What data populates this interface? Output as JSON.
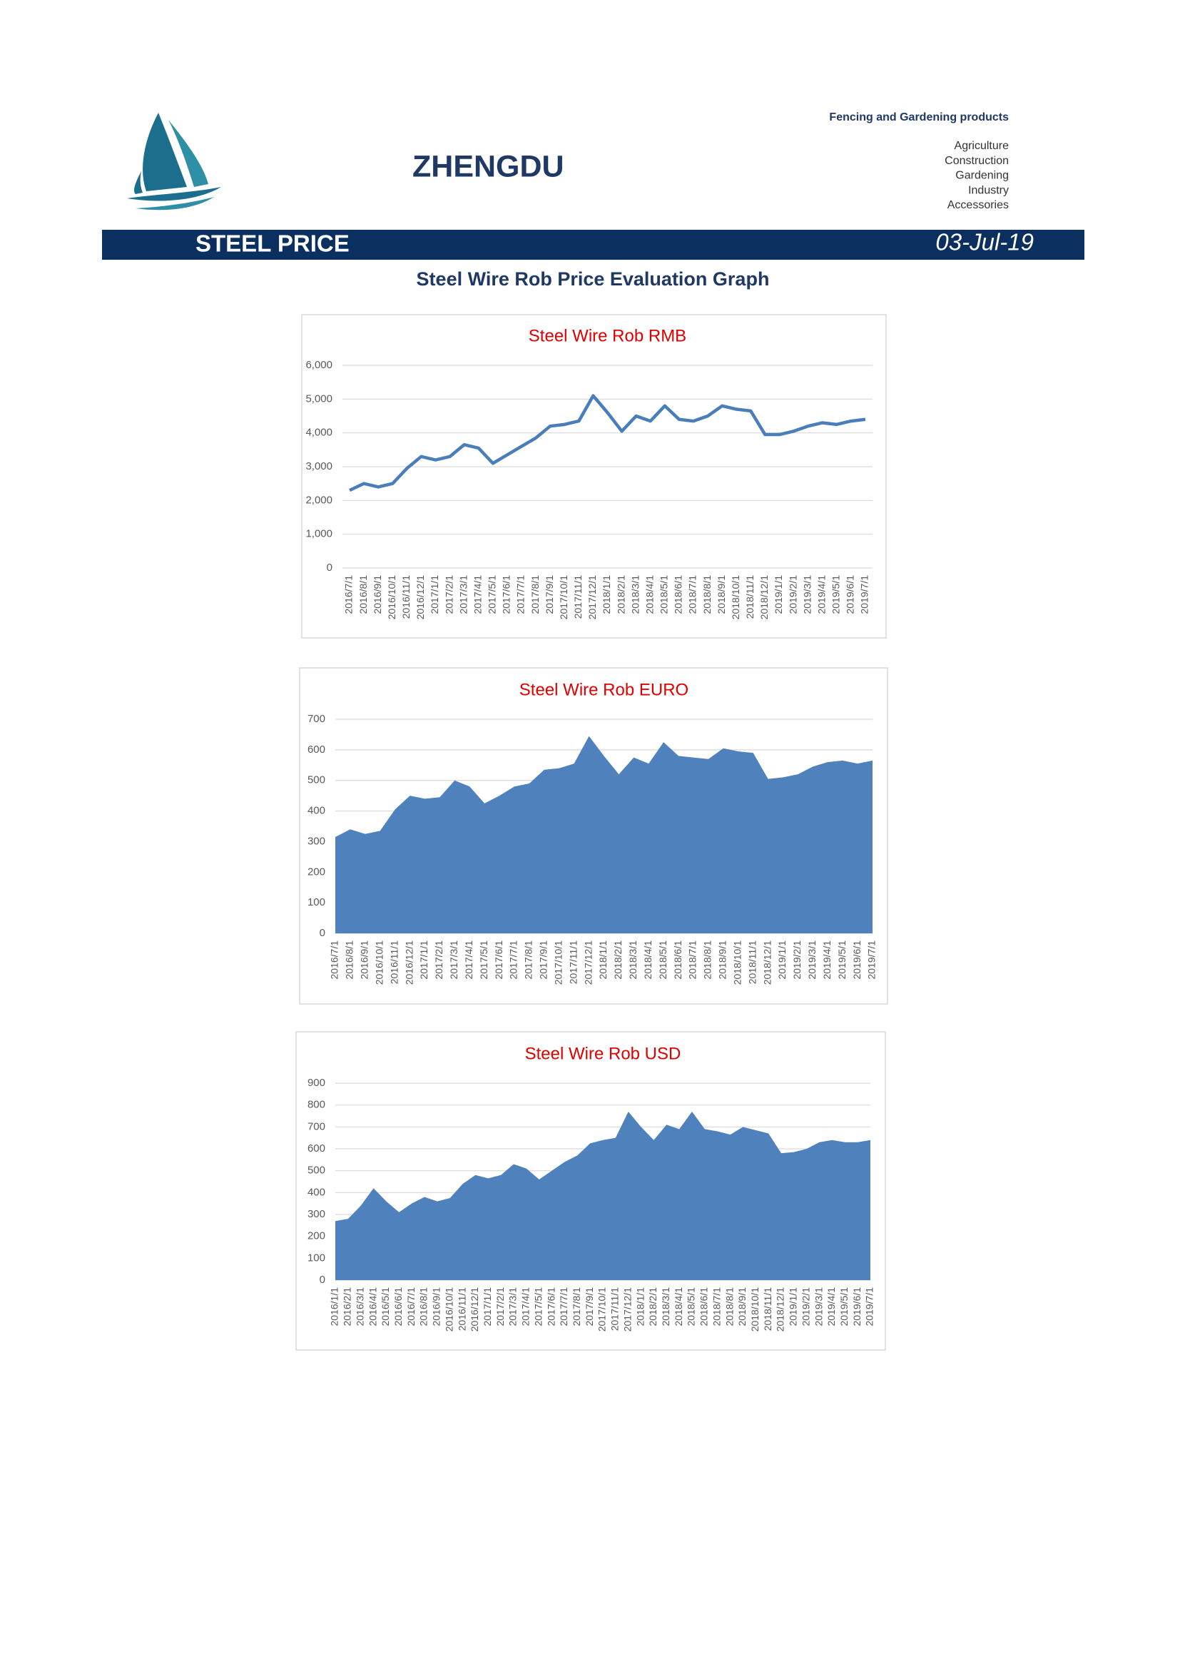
{
  "header": {
    "company": "ZHENGDU",
    "tagline": "Fencing and Gardening products",
    "products": [
      "Agriculture",
      "Construction",
      "Gardening",
      "Industry",
      "Accessories"
    ]
  },
  "banner": {
    "title": "STEEL PRICE",
    "date": "03-Jul-19"
  },
  "subtitle": "Steel Wire Rob Price Evaluation Graph",
  "chart_data": [
    {
      "type": "line",
      "title": "Steel Wire Rob RMB",
      "color": "#4a7ebb",
      "grid": true,
      "categories": [
        "2016/7/1",
        "2016/8/1",
        "2016/9/1",
        "2016/10/1",
        "2016/11/1",
        "2016/12/1",
        "2017/1/1",
        "2017/2/1",
        "2017/3/1",
        "2017/4/1",
        "2017/5/1",
        "2017/6/1",
        "2017/7/1",
        "2017/8/1",
        "2017/9/1",
        "2017/10/1",
        "2017/11/1",
        "2017/12/1",
        "2018/1/1",
        "2018/2/1",
        "2018/3/1",
        "2018/4/1",
        "2018/5/1",
        "2018/6/1",
        "2018/7/1",
        "2018/8/1",
        "2018/9/1",
        "2018/10/1",
        "2018/11/1",
        "2018/12/1",
        "2019/1/1",
        "2019/2/1",
        "2019/3/1",
        "2019/4/1",
        "2019/5/1",
        "2019/6/1",
        "2019/7/1"
      ],
      "values": [
        2300,
        2500,
        2400,
        2500,
        2950,
        3300,
        3200,
        3300,
        3650,
        3550,
        3100,
        3350,
        3600,
        3850,
        4200,
        4250,
        4350,
        5100,
        4600,
        4050,
        4500,
        4350,
        4800,
        4400,
        4350,
        4500,
        4800,
        4700,
        4650,
        3950,
        3950,
        4050,
        4200,
        4300,
        4250,
        4350,
        4400
      ],
      "ylim": [
        0,
        6000
      ],
      "yticks": [
        0,
        {
          "value": 1000,
          "label": "1,000"
        },
        {
          "value": 2000,
          "label": "2,000"
        },
        {
          "value": 3000,
          "label": "3,000"
        },
        {
          "value": 4000,
          "label": "4,000"
        },
        {
          "value": 5000,
          "label": "5,000"
        },
        {
          "value": 6000,
          "label": "6,000"
        }
      ]
    },
    {
      "type": "area",
      "title": "Steel Wire Rob EURO",
      "color": "#4f81bd",
      "grid": true,
      "categories": [
        "2016/7/1",
        "2016/8/1",
        "2016/9/1",
        "2016/10/1",
        "2016/11/1",
        "2016/12/1",
        "2017/1/1",
        "2017/2/1",
        "2017/3/1",
        "2017/4/1",
        "2017/5/1",
        "2017/6/1",
        "2017/7/1",
        "2017/8/1",
        "2017/9/1",
        "2017/10/1",
        "2017/11/1",
        "2017/12/1",
        "2018/1/1",
        "2018/2/1",
        "2018/3/1",
        "2018/4/1",
        "2018/5/1",
        "2018/6/1",
        "2018/7/1",
        "2018/8/1",
        "2018/9/1",
        "2018/10/1",
        "2018/11/1",
        "2018/12/1",
        "2019/1/1",
        "2019/2/1",
        "2019/3/1",
        "2019/4/1",
        "2019/5/1",
        "2019/6/1",
        "2019/7/1"
      ],
      "values": [
        315,
        340,
        325,
        335,
        405,
        450,
        440,
        445,
        500,
        480,
        425,
        450,
        480,
        490,
        535,
        540,
        555,
        645,
        580,
        520,
        575,
        555,
        625,
        580,
        575,
        570,
        605,
        595,
        590,
        505,
        510,
        520,
        545,
        560,
        565,
        555,
        565
      ],
      "ylim": [
        0,
        700
      ],
      "yticks": [
        0,
        100,
        200,
        300,
        400,
        500,
        600,
        700
      ]
    },
    {
      "type": "area",
      "title": "Steel Wire Rob USD",
      "color": "#4f81bd",
      "grid": true,
      "categories": [
        "2016/1/1",
        "2016/2/1",
        "2016/3/1",
        "2016/4/1",
        "2016/5/1",
        "2016/6/1",
        "2016/7/1",
        "2016/8/1",
        "2016/9/1",
        "2016/10/1",
        "2016/11/1",
        "2016/12/1",
        "2017/1/1",
        "2017/2/1",
        "2017/3/1",
        "2017/4/1",
        "2017/5/1",
        "2017/6/1",
        "2017/7/1",
        "2017/8/1",
        "2017/9/1",
        "2017/10/1",
        "2017/11/1",
        "2017/12/1",
        "2018/1/1",
        "2018/2/1",
        "2018/3/1",
        "2018/4/1",
        "2018/5/1",
        "2018/6/1",
        "2018/7/1",
        "2018/8/1",
        "2018/9/1",
        "2018/10/1",
        "2018/11/1",
        "2018/12/1",
        "2019/1/1",
        "2019/2/1",
        "2019/3/1",
        "2019/4/1",
        "2019/5/1",
        "2019/6/1",
        "2019/7/1"
      ],
      "values": [
        270,
        280,
        340,
        420,
        360,
        310,
        350,
        380,
        360,
        375,
        440,
        480,
        465,
        480,
        530,
        510,
        460,
        500,
        540,
        570,
        625,
        640,
        650,
        770,
        700,
        640,
        710,
        690,
        770,
        690,
        680,
        665,
        700,
        685,
        670,
        580,
        585,
        600,
        630,
        640,
        630,
        630,
        640
      ],
      "ylim": [
        0,
        900
      ],
      "yticks": [
        0,
        100,
        200,
        300,
        400,
        500,
        600,
        700,
        800,
        900
      ]
    }
  ]
}
